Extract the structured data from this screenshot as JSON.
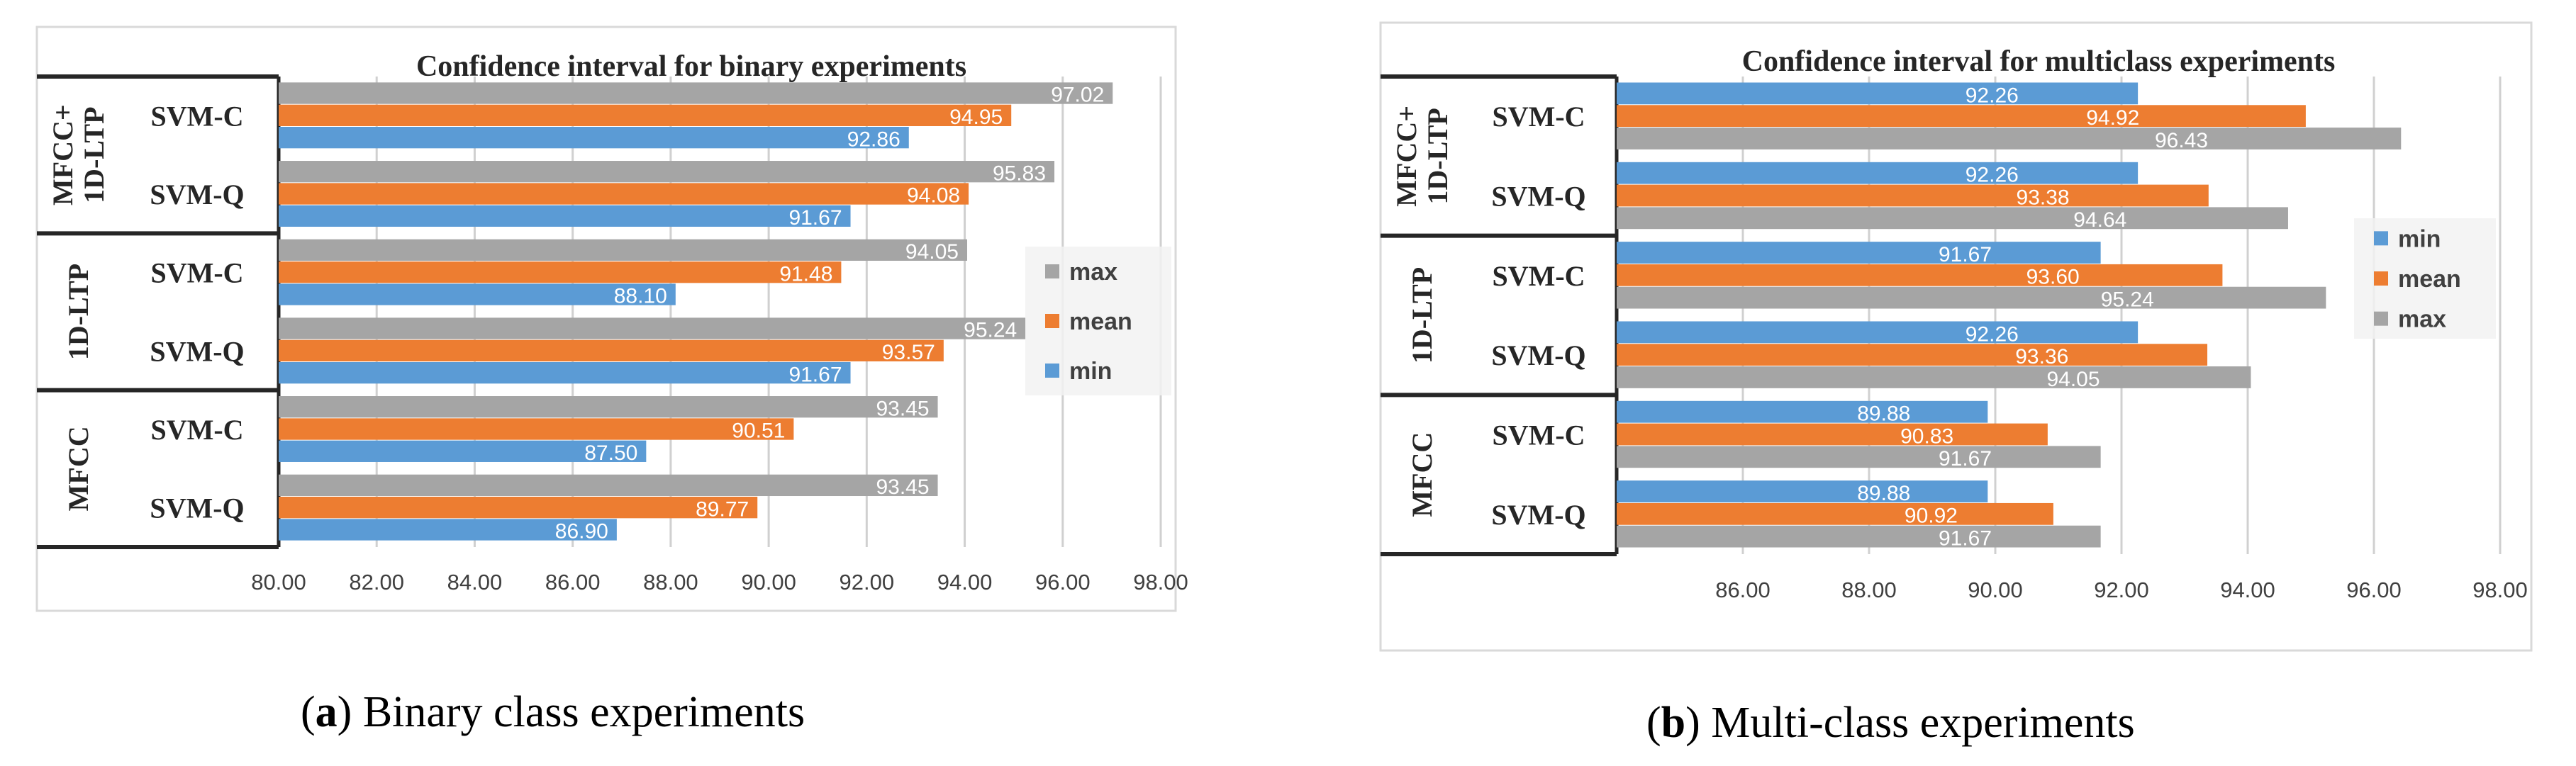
{
  "captions": {
    "a": {
      "letter": "a",
      "text": " Binary class experiments"
    },
    "b": {
      "letter": "b",
      "text": " Multi-class experiments"
    }
  },
  "colors": {
    "max": "#A5A5A5",
    "mean": "#ED7D31",
    "min": "#5B9BD5",
    "grid": "#D0D0D0",
    "frame": "#262626"
  },
  "chart_data": [
    {
      "type": "bar",
      "orientation": "horizontal",
      "title": "Confidence interval for binary experiments",
      "xlabel": "",
      "ylabel": "",
      "xlim": [
        80,
        98
      ],
      "ticks": [
        80,
        82,
        84,
        86,
        88,
        90,
        92,
        94,
        96,
        98
      ],
      "tick_labels": [
        "80.00",
        "82.00",
        "84.00",
        "86.00",
        "88.00",
        "90.00",
        "92.00",
        "94.00",
        "96.00",
        "98.00"
      ],
      "groups": [
        {
          "name": "MFCC+\n1D-LTP",
          "categories": [
            "SVM-C",
            "SVM-Q"
          ]
        },
        {
          "name": "1D-LTP",
          "categories": [
            "SVM-C",
            "SVM-Q"
          ]
        },
        {
          "name": "MFCC",
          "categories": [
            "SVM-C",
            "SVM-Q"
          ]
        }
      ],
      "bar_order": [
        "max",
        "mean",
        "min"
      ],
      "series": [
        {
          "name": "max",
          "values": [
            97.02,
            95.83,
            94.05,
            95.24,
            93.45,
            93.45
          ]
        },
        {
          "name": "mean",
          "values": [
            94.95,
            94.08,
            91.48,
            93.57,
            90.51,
            89.77
          ]
        },
        {
          "name": "min",
          "values": [
            92.86,
            91.67,
            88.1,
            91.67,
            87.5,
            86.9
          ]
        }
      ],
      "legend": {
        "entries": [
          "max",
          "mean",
          "min"
        ],
        "position": "right"
      }
    },
    {
      "type": "bar",
      "orientation": "horizontal",
      "title": "Confidence interval for multiclass experiments",
      "xlabel": "",
      "ylabel": "",
      "xlim": [
        84,
        98
      ],
      "ticks": [
        86,
        88,
        90,
        92,
        94,
        96,
        98
      ],
      "tick_labels": [
        "86.00",
        "88.00",
        "90.00",
        "92.00",
        "94.00",
        "96.00",
        "98.00"
      ],
      "groups": [
        {
          "name": "MFCC+\n1D-LTP",
          "categories": [
            "SVM-C",
            "SVM-Q"
          ]
        },
        {
          "name": "1D-LTP",
          "categories": [
            "SVM-C",
            "SVM-Q"
          ]
        },
        {
          "name": "MFCC",
          "categories": [
            "SVM-C",
            "SVM-Q"
          ]
        }
      ],
      "bar_order": [
        "min",
        "mean",
        "max"
      ],
      "series": [
        {
          "name": "min",
          "values": [
            92.26,
            92.26,
            91.67,
            92.26,
            89.88,
            89.88
          ]
        },
        {
          "name": "mean",
          "values": [
            94.92,
            93.38,
            93.6,
            93.36,
            90.83,
            90.92
          ]
        },
        {
          "name": "max",
          "values": [
            96.43,
            94.64,
            95.24,
            94.05,
            91.67,
            91.67
          ]
        }
      ],
      "legend": {
        "entries": [
          "min",
          "mean",
          "max"
        ],
        "position": "right"
      }
    }
  ]
}
